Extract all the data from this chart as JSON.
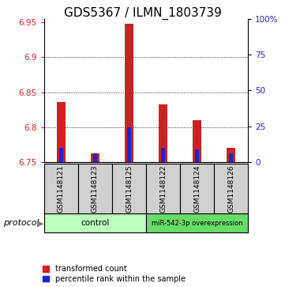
{
  "title": "GDS5367 / ILMN_1803739",
  "samples": [
    "GSM1148121",
    "GSM1148123",
    "GSM1148125",
    "GSM1148122",
    "GSM1148124",
    "GSM1148126"
  ],
  "transformed_counts": [
    6.836,
    6.762,
    6.948,
    6.833,
    6.81,
    6.77
  ],
  "percentile_ranks": [
    6.77,
    6.762,
    6.8,
    6.77,
    6.768,
    6.762
  ],
  "bar_bottom": 6.75,
  "ylim_left": [
    6.75,
    6.955
  ],
  "ylim_right": [
    0,
    100
  ],
  "yticks_left": [
    6.75,
    6.8,
    6.85,
    6.9,
    6.95
  ],
  "yticks_right": [
    0,
    25,
    50,
    75,
    100
  ],
  "grid_values": [
    6.8,
    6.85,
    6.9
  ],
  "red_color": "#cc2222",
  "blue_color": "#2222cc",
  "group_control_label": "control",
  "group_mir_label": "miR-542-3p overexpression",
  "legend_red": "transformed count",
  "legend_blue": "percentile rank within the sample",
  "protocol_label": "protocol",
  "bar_width": 0.25,
  "blue_bar_width": 0.13,
  "gray_bg": "#d0d0d0",
  "control_green": "#bbffbb",
  "mir_green": "#66dd66",
  "title_fontsize": 11,
  "tick_fontsize": 7.5,
  "sample_fontsize": 6.5,
  "group_fontsize": 7.5,
  "legend_fontsize": 7,
  "protocol_fontsize": 8
}
